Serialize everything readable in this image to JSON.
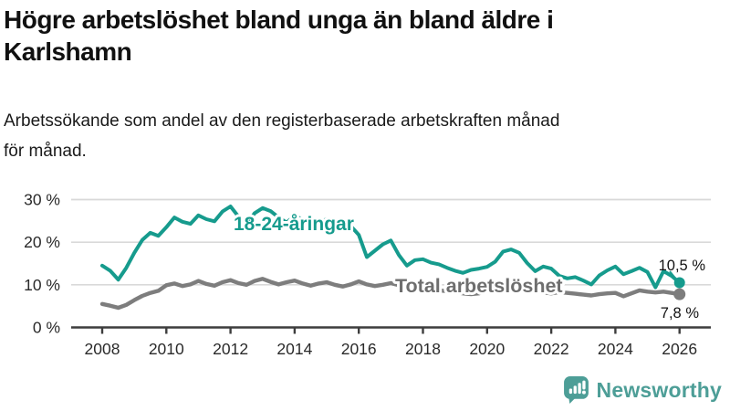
{
  "header": {
    "title_lines": [
      "Högre arbetslöshet bland unga än bland äldre i",
      "Karlshamn"
    ],
    "subtitle_lines": [
      "Arbetssökande som andel av den registerbaserade arbetskraften månad",
      "för månad."
    ]
  },
  "chart_data": {
    "type": "line",
    "title": "Högre arbetslöshet bland unga än bland äldre i Karlshamn",
    "subtitle": "Arbetssökande som andel av den registerbaserade arbetskraften månad för månad.",
    "grid": "horizontal",
    "legend_position": "inline-labels",
    "x": {
      "unit": "year",
      "start": 2008,
      "step": 0.25,
      "count": 73
    },
    "xlim": [
      2008,
      2027
    ],
    "ylim": [
      0,
      32
    ],
    "x_tick_labels": [
      "2008",
      "2010",
      "2012",
      "2014",
      "2016",
      "2018",
      "2020",
      "2022",
      "2024",
      "2026"
    ],
    "y_ticks": [
      0,
      10,
      20,
      30
    ],
    "y_tick_labels": [
      "0 %",
      "10 %",
      "20 %",
      "30 %"
    ],
    "series": [
      {
        "name": "18-24-åringar",
        "color": "#169b8d",
        "label_color": "#169b8d",
        "end_label": "10,5 %",
        "end_value": 10.5,
        "values": [
          14.5,
          13.3,
          11.2,
          14.0,
          17.5,
          20.5,
          22.2,
          21.5,
          23.5,
          25.8,
          24.8,
          24.3,
          26.3,
          25.4,
          24.9,
          27.2,
          28.4,
          26.0,
          24.0,
          26.8,
          28.0,
          27.3,
          25.8,
          24.6,
          26.2,
          25.3,
          23.9,
          24.6,
          25.4,
          24.2,
          23.2,
          23.8,
          21.7,
          16.5,
          18.0,
          19.5,
          20.4,
          17.0,
          14.5,
          15.8,
          16.0,
          15.2,
          14.8,
          14.0,
          13.3,
          12.8,
          13.5,
          13.8,
          14.2,
          15.4,
          17.8,
          18.3,
          17.5,
          15.1,
          13.2,
          14.3,
          13.8,
          12.1,
          11.5,
          11.8,
          11.0,
          10.1,
          12.2,
          13.4,
          14.3,
          12.5,
          13.2,
          14.0,
          13.0,
          9.4,
          13.2,
          12.1,
          10.5
        ]
      },
      {
        "name": "Total arbetslöshet",
        "color": "#7d7d7d",
        "label_color": "#6e6e6e",
        "end_label": "7,8 %",
        "end_value": 7.8,
        "values": [
          5.5,
          5.1,
          4.6,
          5.3,
          6.4,
          7.4,
          8.1,
          8.6,
          9.9,
          10.3,
          9.7,
          10.1,
          10.9,
          10.2,
          9.8,
          10.6,
          11.1,
          10.4,
          10.0,
          10.9,
          11.4,
          10.7,
          10.1,
          10.6,
          11.0,
          10.3,
          9.8,
          10.3,
          10.6,
          10.0,
          9.6,
          10.1,
          10.8,
          10.1,
          9.7,
          10.0,
          10.4,
          9.9,
          9.6,
          9.8,
          9.5,
          9.0,
          8.7,
          8.5,
          8.3,
          8.0,
          7.8,
          8.0,
          8.6,
          9.2,
          9.5,
          9.3,
          9.0,
          8.7,
          8.4,
          8.2,
          8.0,
          8.3,
          8.1,
          7.9,
          7.7,
          7.5,
          7.8,
          8.0,
          8.1,
          7.3,
          8.0,
          8.7,
          8.4,
          8.2,
          8.4,
          8.1,
          7.8
        ]
      }
    ],
    "colors": {
      "grid": "#d9d9d9",
      "axis": "#3d3d3d",
      "tick_label": "#2a2a2a",
      "end_label": "#111111"
    }
  },
  "footer": {
    "brand": "Newsworthy",
    "brand_color": "#4d9e97",
    "logo_icon": "bar-chart-speech-bubble"
  }
}
